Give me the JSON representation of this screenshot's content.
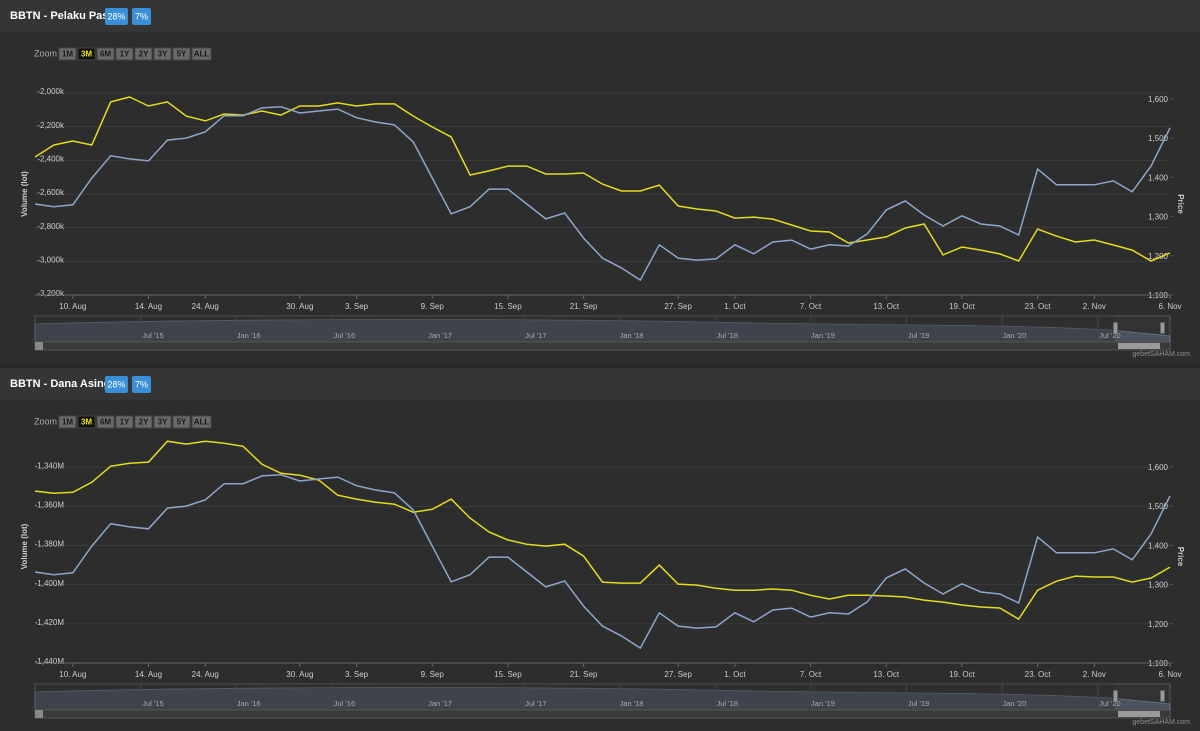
{
  "chart_data": [
    {
      "type": "line",
      "title": "BBTN - Pelaku Pasar",
      "badges": [
        "28%",
        "7%"
      ],
      "zoom_label": "Zoom",
      "zoom_buttons": [
        "1M",
        "3M",
        "6M",
        "1Y",
        "2Y",
        "3Y",
        "5Y",
        "ALL"
      ],
      "zoom_selected": 1,
      "y_label": "Volume (lot)",
      "y2_label": "Price",
      "categories": [
        null,
        null,
        "10. Aug",
        null,
        null,
        null,
        "14. Aug",
        null,
        null,
        "24. Aug",
        null,
        null,
        null,
        null,
        "30. Aug",
        null,
        null,
        "3. Sep",
        null,
        null,
        null,
        "9. Sep",
        null,
        null,
        null,
        "15. Sep",
        null,
        null,
        null,
        "21. Sep",
        null,
        null,
        null,
        null,
        "27. Sep",
        null,
        null,
        "1. Oct",
        null,
        null,
        null,
        "7. Oct",
        null,
        null,
        null,
        "13. Oct",
        null,
        null,
        null,
        "19. Oct",
        null,
        null,
        null,
        "23. Oct",
        null,
        null,
        "2. Nov",
        null,
        null,
        null,
        "6. Nov"
      ],
      "series": [
        {
          "color": "#e3dc1f",
          "values": [
            -2380000,
            -2309000,
            -2285000,
            -2309000,
            -2053000,
            -2024000,
            -2077000,
            -2053000,
            -2137000,
            -2166000,
            -2125000,
            -2131000,
            -2107000,
            -2131000,
            -2077000,
            -2077000,
            -2059000,
            -2077000,
            -2065000,
            -2065000,
            -2137000,
            -2202000,
            -2261000,
            -2487000,
            -2463000,
            -2434000,
            -2434000,
            -2481000,
            -2481000,
            -2475000,
            -2541000,
            -2582000,
            -2582000,
            -2547000,
            -2671000,
            -2689000,
            -2701000,
            -2743000,
            -2737000,
            -2749000,
            -2784000,
            -2820000,
            -2826000,
            -2891000,
            -2873000,
            -2855000,
            -2802000,
            -2778000,
            -2962000,
            -2915000,
            -2933000,
            -2956000,
            -2998000,
            -2808000,
            -2850000,
            -2885000,
            -2873000,
            -2903000,
            -2933000,
            -2998000,
            -2950000
          ]
        },
        {
          "color": "#8ea6c8",
          "axis": "y2",
          "values": [
            1332,
            1325,
            1330,
            1398,
            1455,
            1447,
            1442,
            1495,
            1500,
            1516,
            1557,
            1557,
            1577,
            1580,
            1564,
            1569,
            1574,
            1552,
            1541,
            1534,
            1490,
            1398,
            1307,
            1325,
            1370,
            1370,
            1332,
            1294,
            1309,
            1245,
            1194,
            1169,
            1138,
            1228,
            1194,
            1189,
            1192,
            1228,
            1205,
            1235,
            1240,
            1217,
            1228,
            1225,
            1256,
            1317,
            1340,
            1304,
            1276,
            1302,
            1281,
            1276,
            1253,
            1421,
            1381,
            1381,
            1381,
            1391,
            1363,
            1429,
            1526
          ]
        }
      ],
      "ylim": [
        -3200000,
        -2000000
      ],
      "yticks": [
        {
          "value": -2000000,
          "label": "-2,000k"
        },
        {
          "value": -2200000,
          "label": "-2,200k"
        },
        {
          "value": -2400000,
          "label": "-2,400k"
        },
        {
          "value": -2600000,
          "label": "-2,600k"
        },
        {
          "value": -2800000,
          "label": "-2,800k"
        },
        {
          "value": -3000000,
          "label": "-3,000k"
        },
        {
          "value": -3200000,
          "label": "-3,200k"
        }
      ],
      "y2lim": [
        1100,
        1615
      ],
      "y2ticks": [
        {
          "value": 1100,
          "label": "1,100"
        },
        {
          "value": 1200,
          "label": "1,200"
        },
        {
          "value": 1300,
          "label": "1,300"
        },
        {
          "value": 1400,
          "label": "1,400"
        },
        {
          "value": 1500,
          "label": "1,500"
        },
        {
          "value": 1600,
          "label": "1,600"
        }
      ],
      "grid": true,
      "navigator_labels": [
        "Jul '15",
        "Jan '16",
        "Jul '16",
        "Jan '17",
        "Jul '17",
        "Jan '18",
        "Jul '18",
        "Jan '19",
        "Jul '19",
        "Jan '20",
        "Jul '20"
      ],
      "credit": "gebetSAHAM.com"
    },
    {
      "type": "line",
      "title": "BBTN - Dana Asing",
      "badges": [
        "28%",
        "7%"
      ],
      "zoom_label": "Zoom",
      "zoom_buttons": [
        "1M",
        "3M",
        "6M",
        "1Y",
        "2Y",
        "3Y",
        "5Y",
        "ALL"
      ],
      "zoom_selected": 1,
      "y_label": "Volume (lot)",
      "y2_label": "Price",
      "categories": [
        null,
        null,
        "10. Aug",
        null,
        null,
        null,
        "14. Aug",
        null,
        null,
        "24. Aug",
        null,
        null,
        null,
        null,
        "30. Aug",
        null,
        null,
        "3. Sep",
        null,
        null,
        null,
        "9. Sep",
        null,
        null,
        null,
        "15. Sep",
        null,
        null,
        null,
        "21. Sep",
        null,
        null,
        null,
        null,
        "27. Sep",
        null,
        null,
        "1. Oct",
        null,
        null,
        null,
        "7. Oct",
        null,
        null,
        null,
        "13. Oct",
        null,
        null,
        null,
        "19. Oct",
        null,
        null,
        null,
        "23. Oct",
        null,
        null,
        "2. Nov",
        null,
        null,
        null,
        "6. Nov"
      ],
      "series": [
        {
          "color": "#e3dc1f",
          "values": [
            -1352200000,
            -1353300000,
            -1352800000,
            -1347700000,
            -1339500000,
            -1338000000,
            -1337400000,
            -1326700000,
            -1328200000,
            -1326700000,
            -1327800000,
            -1329300000,
            -1338500000,
            -1343100000,
            -1344100000,
            -1346600000,
            -1354300000,
            -1356300000,
            -1357900000,
            -1358900000,
            -1363000000,
            -1361500000,
            -1356300000,
            -1366000000,
            -1373100000,
            -1377200000,
            -1379300000,
            -1380300000,
            -1379300000,
            -1385400000,
            -1398700000,
            -1399200000,
            -1399200000,
            -1390000000,
            -1399700000,
            -1400200000,
            -1401800000,
            -1402800000,
            -1402800000,
            -1402200000,
            -1402800000,
            -1405400000,
            -1407300000,
            -1405400000,
            -1405400000,
            -1405800000,
            -1406300000,
            -1407900000,
            -1408900000,
            -1410400000,
            -1411400000,
            -1411900000,
            -1417600000,
            -1402800000,
            -1398200000,
            -1395600000,
            -1396100000,
            -1396100000,
            -1398700000,
            -1396600000,
            -1391000000
          ]
        },
        {
          "color": "#8ea6c8",
          "axis": "y2",
          "values": [
            1332,
            1325,
            1330,
            1398,
            1455,
            1447,
            1442,
            1495,
            1500,
            1516,
            1557,
            1557,
            1577,
            1580,
            1564,
            1569,
            1574,
            1552,
            1541,
            1534,
            1490,
            1398,
            1307,
            1325,
            1370,
            1370,
            1332,
            1294,
            1309,
            1245,
            1194,
            1169,
            1138,
            1228,
            1194,
            1189,
            1192,
            1228,
            1205,
            1235,
            1240,
            1217,
            1228,
            1225,
            1256,
            1317,
            1340,
            1304,
            1276,
            1302,
            1281,
            1276,
            1253,
            1421,
            1381,
            1381,
            1381,
            1391,
            1363,
            1429,
            1526
          ]
        }
      ],
      "ylim": [
        -1440000000,
        -1321000000
      ],
      "yticks": [
        {
          "value": -1340000000,
          "label": "-1,340M"
        },
        {
          "value": -1360000000,
          "label": "-1,360M"
        },
        {
          "value": -1380000000,
          "label": "-1,380M"
        },
        {
          "value": -1400000000,
          "label": "-1,400M"
        },
        {
          "value": -1420000000,
          "label": "-1,420M"
        },
        {
          "value": -1440000000,
          "label": "-1,440M"
        }
      ],
      "y2lim": [
        1100,
        1694
      ],
      "y2ticks": [
        {
          "value": 1100,
          "label": "1,100"
        },
        {
          "value": 1200,
          "label": "1,200"
        },
        {
          "value": 1300,
          "label": "1,300"
        },
        {
          "value": 1400,
          "label": "1,400"
        },
        {
          "value": 1500,
          "label": "1,500"
        },
        {
          "value": 1600,
          "label": "1,600"
        }
      ],
      "grid": true,
      "navigator_labels": [
        "Jul '15",
        "Jan '16",
        "Jul '16",
        "Jan '17",
        "Jul '17",
        "Jan '18",
        "Jul '18",
        "Jan '19",
        "Jul '19",
        "Jan '20",
        "Jul '20"
      ],
      "credit": "gebetSAHAM.com"
    }
  ]
}
